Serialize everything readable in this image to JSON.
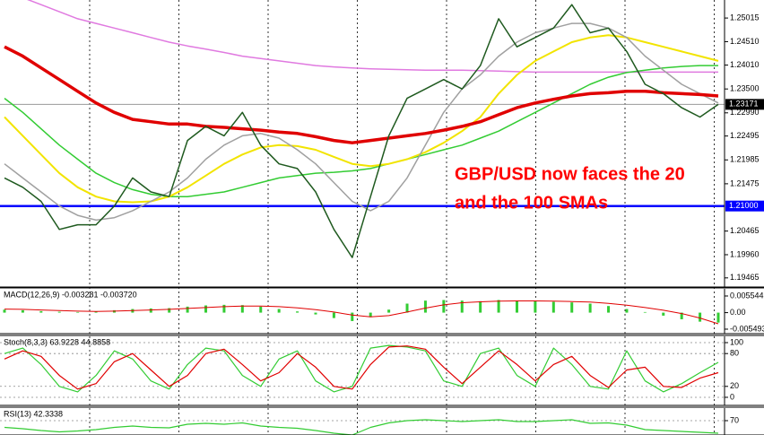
{
  "chart_data": [
    {
      "type": "line",
      "annotation": [
        "GBP/USD now faces the 20",
        "and the 100 SMAs"
      ],
      "categories": [
        null,
        null,
        null,
        null,
        null,
        null,
        null,
        null,
        null,
        null,
        null,
        null,
        null,
        null,
        null,
        null,
        null,
        null,
        null,
        null,
        null,
        null,
        null,
        null,
        null,
        null,
        null,
        null,
        null,
        null,
        null,
        null,
        null,
        null,
        null,
        null,
        null,
        null,
        null,
        null
      ],
      "ylim": [
        1.1927,
        1.254
      ],
      "yticks": [
        {
          "value": 1.25015,
          "label": "1.25015"
        },
        {
          "value": 1.2451,
          "label": "1.24510"
        },
        {
          "value": 1.2401,
          "label": "1.24010"
        },
        {
          "value": 1.235,
          "label": "1.23500"
        },
        {
          "value": 1.2299,
          "label": "1.22990"
        },
        {
          "value": 1.22495,
          "label": "1.22495"
        },
        {
          "value": 1.21985,
          "label": "1.21985"
        },
        {
          "value": 1.21475,
          "label": "1.21475"
        },
        {
          "value": 1.20465,
          "label": "1.20465"
        },
        {
          "value": 1.1996,
          "label": "1.19960"
        },
        {
          "value": 1.19465,
          "label": "1.19465"
        }
      ],
      "levels": [
        {
          "value": 1.21,
          "label": "1.21000",
          "color": "#0000ff"
        },
        {
          "value": 1.23171,
          "label": "1.23171",
          "color": "#000000"
        }
      ],
      "grid": true,
      "series": [
        {
          "type": "line",
          "color": "#e07ae0",
          "width": 1.5,
          "values": [
            1.256,
            1.2545,
            1.253,
            1.2515,
            1.25,
            1.249,
            1.248,
            1.247,
            1.246,
            1.245,
            1.2442,
            1.2435,
            1.2428,
            1.242,
            1.2415,
            1.241,
            1.2405,
            1.24,
            1.2397,
            1.2395,
            1.2393,
            1.2392,
            1.2391,
            1.239,
            1.239,
            1.239,
            1.2389,
            1.2388,
            1.2387,
            1.2386,
            1.2386,
            1.2386,
            1.2386,
            1.2386,
            1.2386,
            1.2386,
            1.2386,
            1.2386,
            1.2386,
            1.2386
          ]
        },
        {
          "type": "line",
          "color": "#33cc33",
          "width": 1.5,
          "values": [
            1.233,
            1.23,
            1.2265,
            1.223,
            1.22,
            1.217,
            1.215,
            1.2135,
            1.2125,
            1.212,
            1.212,
            1.2125,
            1.213,
            1.214,
            1.215,
            1.216,
            1.2165,
            1.217,
            1.2172,
            1.2175,
            1.218,
            1.219,
            1.22,
            1.221,
            1.222,
            1.223,
            1.2245,
            1.226,
            1.228,
            1.23,
            1.232,
            1.234,
            1.236,
            1.2375,
            1.2385,
            1.239,
            1.2395,
            1.2398,
            1.24,
            1.24
          ]
        },
        {
          "type": "line",
          "color": "#f2e400",
          "width": 2,
          "values": [
            1.229,
            1.225,
            1.221,
            1.217,
            1.214,
            1.212,
            1.211,
            1.2108,
            1.211,
            1.212,
            1.214,
            1.2165,
            1.219,
            1.221,
            1.2225,
            1.223,
            1.2228,
            1.222,
            1.2205,
            1.219,
            1.2185,
            1.219,
            1.22,
            1.2215,
            1.2235,
            1.226,
            1.229,
            1.234,
            1.238,
            1.241,
            1.243,
            1.245,
            1.246,
            1.2465,
            1.246,
            1.245,
            1.244,
            1.243,
            1.242,
            1.241
          ]
        },
        {
          "type": "line",
          "color": "#a0a0a0",
          "width": 1.5,
          "values": [
            1.219,
            1.216,
            1.213,
            1.21,
            1.208,
            1.207,
            1.2075,
            1.209,
            1.211,
            1.213,
            1.216,
            1.22,
            1.223,
            1.225,
            1.2255,
            1.2245,
            1.222,
            1.219,
            1.215,
            1.211,
            1.209,
            1.211,
            1.216,
            1.223,
            1.23,
            1.235,
            1.238,
            1.242,
            1.245,
            1.247,
            1.248,
            1.249,
            1.249,
            1.248,
            1.246,
            1.242,
            1.239,
            1.236,
            1.234,
            1.232
          ]
        },
        {
          "type": "line",
          "color": "#e00000",
          "width": 3.5,
          "values": [
            1.244,
            1.242,
            1.2395,
            1.237,
            1.2345,
            1.232,
            1.23,
            1.2285,
            1.228,
            1.2275,
            1.2275,
            1.227,
            1.2268,
            1.2265,
            1.2262,
            1.2258,
            1.2255,
            1.2248,
            1.224,
            1.2235,
            1.224,
            1.2245,
            1.225,
            1.2255,
            1.2262,
            1.227,
            1.228,
            1.2295,
            1.231,
            1.232,
            1.2328,
            1.2335,
            1.234,
            1.2342,
            1.2345,
            1.2345,
            1.2342,
            1.234,
            1.2338,
            1.2335
          ]
        },
        {
          "type": "line",
          "color": "#1f5a1f",
          "width": 1.5,
          "values": [
            1.216,
            1.214,
            1.211,
            1.205,
            1.206,
            1.206,
            1.21,
            1.216,
            1.213,
            1.212,
            1.224,
            1.227,
            1.225,
            1.23,
            1.223,
            1.219,
            1.218,
            1.213,
            1.205,
            1.199,
            1.212,
            1.225,
            1.233,
            1.235,
            1.237,
            1.235,
            1.24,
            1.25,
            1.244,
            1.246,
            1.248,
            1.253,
            1.247,
            1.248,
            1.243,
            1.236,
            1.234,
            1.231,
            1.229,
            1.2317
          ]
        }
      ]
    },
    {
      "type": "bar",
      "title": "MACD(12,26,9) -0.003281 -0.003720",
      "ylim": [
        -0.00699,
        0.00793
      ],
      "yticks": [
        {
          "value": 0.005544,
          "label": "0.005544"
        },
        {
          "value": 0,
          "label": "0.00"
        },
        {
          "value": -0.005493,
          "label": "-0.005493"
        }
      ],
      "series": [
        {
          "type": "bar",
          "color": "#33cc33",
          "values": [
            0.001,
            0.0008,
            0.0005,
            0.0003,
            0.0002,
            0.0004,
            0.0008,
            0.0012,
            0.0014,
            0.0015,
            0.002,
            0.0024,
            0.0026,
            0.0025,
            0.002,
            0.0012,
            0.0004,
            -0.0006,
            -0.0018,
            -0.0028,
            -0.0015,
            0.001,
            0.003,
            0.004,
            0.0042,
            0.004,
            0.0038,
            0.0042,
            0.004,
            0.0038,
            0.0036,
            0.0034,
            0.003,
            0.0022,
            0.0012,
            0.0002,
            -0.001,
            -0.0022,
            -0.003,
            -0.0033
          ]
        },
        {
          "type": "line",
          "color": "#e00000",
          "width": 1,
          "values": [
            0.0012,
            0.0011,
            0.0009,
            0.0007,
            0.0005,
            0.0004,
            0.0005,
            0.0007,
            0.0009,
            0.0011,
            0.0014,
            0.0017,
            0.002,
            0.0022,
            0.0022,
            0.002,
            0.0016,
            0.001,
            0.0002,
            -0.0008,
            -0.0014,
            -0.001,
            0.0002,
            0.0015,
            0.0026,
            0.0033,
            0.0036,
            0.0038,
            0.0039,
            0.0039,
            0.0038,
            0.0037,
            0.0035,
            0.0031,
            0.0025,
            0.0017,
            0.0008,
            -0.0003,
            -0.0018,
            -0.0037
          ]
        }
      ]
    },
    {
      "type": "line",
      "title": "Stoch(8,3,3) 63.9228 44.8858",
      "ylim": [
        -14.8,
        111.5
      ],
      "yticks": [
        100,
        80,
        20,
        0
      ],
      "series": [
        {
          "type": "line",
          "color": "#33cc33",
          "width": 1.2,
          "values": [
            80,
            90,
            60,
            20,
            10,
            40,
            85,
            70,
            30,
            15,
            60,
            90,
            85,
            40,
            20,
            70,
            85,
            30,
            10,
            20,
            90,
            95,
            92,
            85,
            30,
            20,
            80,
            90,
            40,
            20,
            90,
            60,
            20,
            15,
            85,
            30,
            10,
            25,
            45,
            64
          ]
        },
        {
          "type": "line",
          "color": "#e00000",
          "width": 1.2,
          "values": [
            70,
            85,
            75,
            40,
            15,
            25,
            65,
            80,
            50,
            20,
            40,
            80,
            88,
            60,
            30,
            45,
            80,
            55,
            20,
            15,
            60,
            92,
            94,
            88,
            55,
            25,
            55,
            85,
            60,
            30,
            60,
            75,
            40,
            18,
            50,
            55,
            20,
            18,
            35,
            45
          ]
        }
      ]
    },
    {
      "type": "line",
      "title": "RSI(13) 42.3338",
      "ylim": [
        38,
        98
      ],
      "yticks": [
        70
      ],
      "series": [
        {
          "type": "line",
          "color": "#33cc33",
          "width": 1.2,
          "values": [
            55,
            52,
            48,
            45,
            47,
            50,
            55,
            58,
            55,
            54,
            62,
            64,
            62,
            65,
            58,
            55,
            53,
            48,
            42,
            38,
            55,
            65,
            70,
            72,
            70,
            68,
            70,
            72,
            68,
            68,
            70,
            72,
            64,
            65,
            60,
            50,
            48,
            46,
            44,
            42
          ]
        }
      ]
    }
  ]
}
